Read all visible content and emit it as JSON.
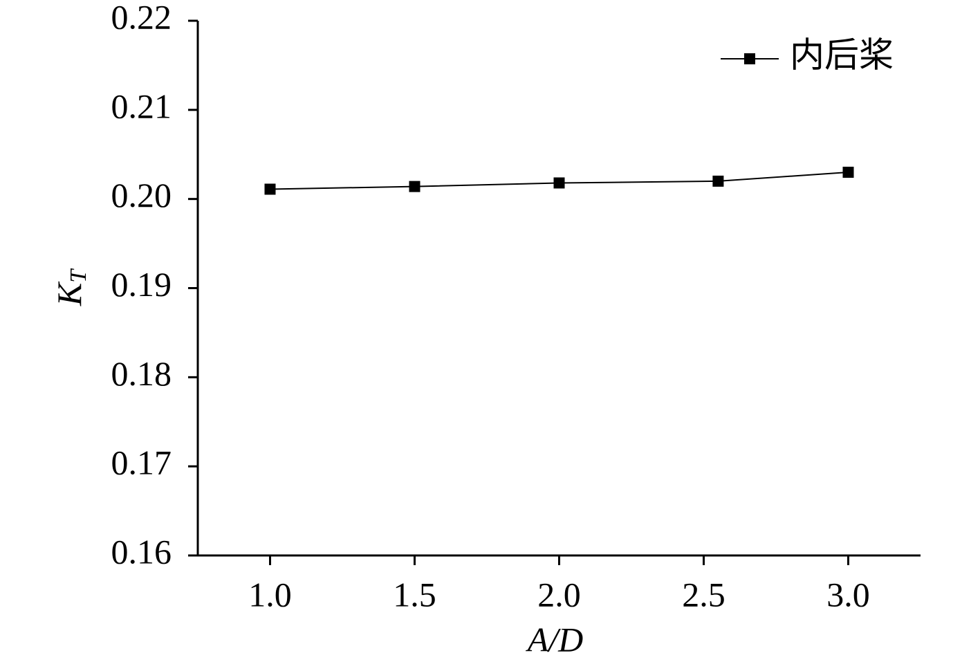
{
  "chart_data": {
    "type": "line",
    "xlabel": "A/D",
    "ylabel": "K",
    "ylabel_sub": "T",
    "series": [
      {
        "name": "内后桨",
        "color": "#000000",
        "x": [
          1.0,
          1.5,
          2.0,
          2.55,
          3.0
        ],
        "values": [
          0.2011,
          0.2014,
          0.2018,
          0.202,
          0.203
        ]
      }
    ],
    "xlim": [
      0.75,
      3.25
    ],
    "xticks": [
      {
        "value": 1,
        "label": "1.0"
      },
      1.5,
      {
        "value": 2,
        "label": "2.0"
      },
      2.5,
      {
        "value": 3,
        "label": "3.0"
      }
    ],
    "ylim": [
      0.16,
      0.22
    ],
    "yticks": [
      0.16,
      0.17,
      0.18,
      0.19,
      {
        "value": 0.2,
        "label": "0.20"
      },
      0.21,
      0.22
    ],
    "legend": "top-right",
    "grid": false
  }
}
